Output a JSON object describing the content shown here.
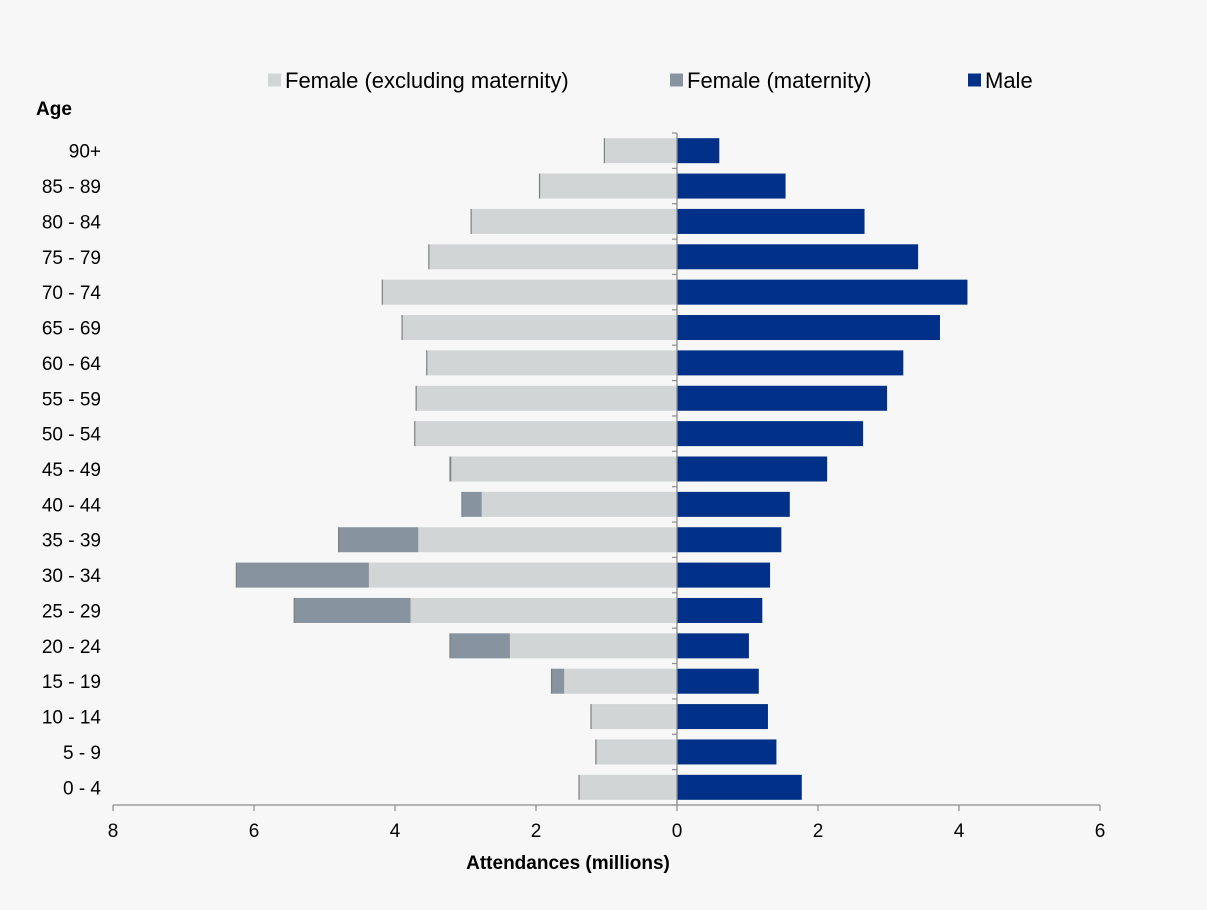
{
  "chart_data": {
    "type": "bar",
    "orientation": "horizontal",
    "layout": "population-pyramid",
    "ylabel": "Age",
    "xlabel": "Attendances (millions)",
    "categories": [
      "0 - 4",
      "5 - 9",
      "10 - 14",
      "15 - 19",
      "20 - 24",
      "25 - 29",
      "30 - 34",
      "35 - 39",
      "40 - 44",
      "45 - 49",
      "50 - 54",
      "55 - 59",
      "60 - 64",
      "65 - 69",
      "70 - 74",
      "75 - 79",
      "80 - 84",
      "85 - 89",
      "90+"
    ],
    "xlim": [
      -8,
      6
    ],
    "xticks": [
      -8,
      -6,
      -4,
      -2,
      0,
      2,
      4,
      6
    ],
    "xtick_labels": [
      "8",
      "6",
      "4",
      "2",
      "0",
      "2",
      "4",
      "6"
    ],
    "grid": false,
    "legend_position": "top",
    "series": [
      {
        "name": "Female (excluding maternity)",
        "side": "left",
        "color": "#d1d5d6",
        "values": [
          1.39,
          1.15,
          1.22,
          1.6,
          2.37,
          3.78,
          4.37,
          3.67,
          2.77,
          3.2,
          3.72,
          3.7,
          3.55,
          3.9,
          4.18,
          3.52,
          2.92,
          1.95,
          1.03
        ]
      },
      {
        "name": "Female (maternity)",
        "side": "left",
        "stacked_on": "Female (excluding maternity)",
        "color": "#87939e",
        "values": [
          0,
          0,
          0,
          0.18,
          0.85,
          1.65,
          1.88,
          1.13,
          0.28,
          0.02,
          0,
          0,
          0,
          0,
          0,
          0,
          0,
          0,
          0
        ]
      },
      {
        "name": "Male",
        "side": "right",
        "color": "#003087",
        "values": [
          1.77,
          1.41,
          1.29,
          1.16,
          1.02,
          1.21,
          1.32,
          1.48,
          1.6,
          2.13,
          2.64,
          2.98,
          3.21,
          3.73,
          4.12,
          3.42,
          2.66,
          1.54,
          0.6
        ]
      }
    ]
  }
}
